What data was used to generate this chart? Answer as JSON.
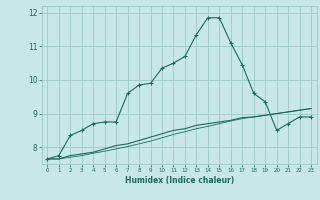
{
  "title": "",
  "xlabel": "Humidex (Indice chaleur)",
  "xlim": [
    -0.5,
    23.5
  ],
  "ylim": [
    7.5,
    12.2
  ],
  "yticks": [
    8,
    9,
    10,
    11,
    12
  ],
  "xticks": [
    0,
    1,
    2,
    3,
    4,
    5,
    6,
    7,
    8,
    9,
    10,
    11,
    12,
    13,
    14,
    15,
    16,
    17,
    18,
    19,
    20,
    21,
    22,
    23
  ],
  "bg_color": "#c8e8e8",
  "grid_color": "#a0c8c8",
  "line_color": "#1a6b5a",
  "line1_x": [
    0,
    1,
    2,
    3,
    4,
    5,
    6,
    7,
    8,
    9,
    10,
    11,
    12,
    13,
    14,
    15,
    16,
    17,
    18,
    19,
    20,
    21,
    22,
    23
  ],
  "line1_y": [
    7.65,
    7.75,
    8.35,
    8.5,
    8.7,
    8.75,
    8.75,
    9.6,
    9.85,
    9.9,
    10.35,
    10.5,
    10.7,
    11.35,
    11.85,
    11.85,
    11.1,
    10.45,
    9.6,
    9.35,
    8.5,
    8.7,
    8.9,
    8.9
  ],
  "line2_x": [
    0,
    1,
    2,
    3,
    4,
    5,
    6,
    7,
    8,
    9,
    10,
    11,
    12,
    13,
    14,
    15,
    16,
    17,
    18,
    19,
    20,
    21,
    22,
    23
  ],
  "line2_y": [
    7.65,
    7.65,
    7.75,
    7.8,
    7.85,
    7.95,
    8.05,
    8.1,
    8.2,
    8.3,
    8.4,
    8.5,
    8.55,
    8.65,
    8.7,
    8.75,
    8.8,
    8.88,
    8.9,
    8.95,
    9.0,
    9.05,
    9.1,
    9.15
  ],
  "line3_x": [
    0,
    1,
    2,
    3,
    4,
    5,
    6,
    7,
    8,
    9,
    10,
    11,
    12,
    13,
    14,
    15,
    16,
    17,
    18,
    19,
    20,
    21,
    22,
    23
  ],
  "line3_y": [
    7.65,
    7.65,
    7.7,
    7.75,
    7.82,
    7.88,
    7.95,
    8.02,
    8.1,
    8.18,
    8.28,
    8.38,
    8.46,
    8.55,
    8.62,
    8.7,
    8.78,
    8.85,
    8.9,
    8.95,
    9.0,
    9.05,
    9.1,
    9.15
  ]
}
